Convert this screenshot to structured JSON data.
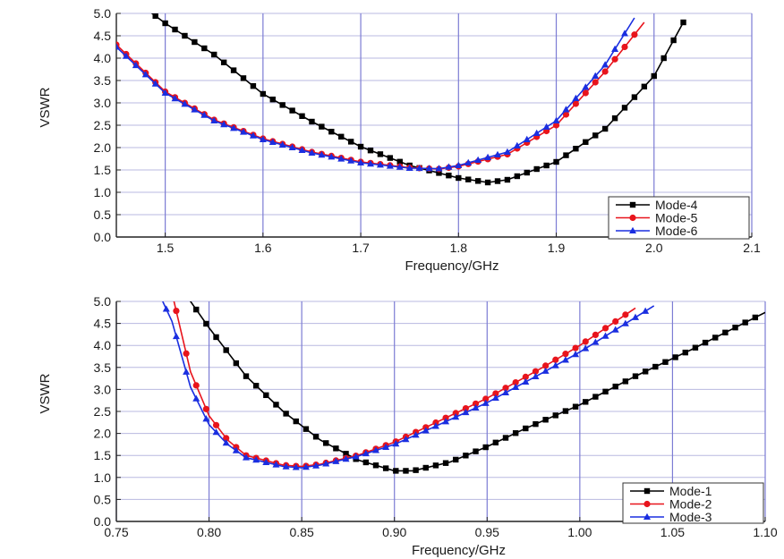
{
  "chart_data": [
    {
      "type": "line",
      "title": "",
      "xlabel": "Frequency/GHz",
      "ylabel": "VSWR",
      "xlim": [
        1.45,
        2.1
      ],
      "ylim": [
        0.0,
        5.0
      ],
      "xticks": [
        "1.5",
        "1.6",
        "1.7",
        "1.8",
        "1.9",
        "2.0",
        "2.1"
      ],
      "yticks": [
        "0.0",
        "0.5",
        "1.0",
        "1.5",
        "2.0",
        "2.5",
        "3.0",
        "3.5",
        "4.0",
        "4.5",
        "5.0"
      ],
      "grid": true,
      "legend_position": "bottom-right",
      "series": [
        {
          "name": "Mode-4",
          "color": "#000000",
          "marker": "square",
          "points": [
            [
              1.45,
              5.6
            ],
            [
              1.5,
              4.78
            ],
            [
              1.55,
              4.08
            ],
            [
              1.6,
              3.2
            ],
            [
              1.65,
              2.58
            ],
            [
              1.7,
              2.02
            ],
            [
              1.75,
              1.6
            ],
            [
              1.8,
              1.32
            ],
            [
              1.83,
              1.22
            ],
            [
              1.85,
              1.28
            ],
            [
              1.9,
              1.68
            ],
            [
              1.95,
              2.42
            ],
            [
              2.0,
              3.6
            ],
            [
              2.03,
              4.8
            ]
          ]
        },
        {
          "name": "Mode-5",
          "color": "#e8141c",
          "marker": "circle",
          "points": [
            [
              1.45,
              4.3
            ],
            [
              1.5,
              3.25
            ],
            [
              1.55,
              2.62
            ],
            [
              1.6,
              2.2
            ],
            [
              1.65,
              1.9
            ],
            [
              1.7,
              1.68
            ],
            [
              1.75,
              1.55
            ],
            [
              1.78,
              1.52
            ],
            [
              1.8,
              1.58
            ],
            [
              1.85,
              1.85
            ],
            [
              1.9,
              2.5
            ],
            [
              1.95,
              3.7
            ],
            [
              1.99,
              4.8
            ]
          ]
        },
        {
          "name": "Mode-6",
          "color": "#1a2ee0",
          "marker": "triangle",
          "points": [
            [
              1.45,
              4.25
            ],
            [
              1.5,
              3.22
            ],
            [
              1.55,
              2.6
            ],
            [
              1.6,
              2.18
            ],
            [
              1.65,
              1.88
            ],
            [
              1.7,
              1.66
            ],
            [
              1.75,
              1.54
            ],
            [
              1.78,
              1.53
            ],
            [
              1.8,
              1.6
            ],
            [
              1.85,
              1.9
            ],
            [
              1.9,
              2.6
            ],
            [
              1.95,
              3.85
            ],
            [
              1.98,
              4.9
            ]
          ]
        }
      ]
    },
    {
      "type": "line",
      "title": "",
      "xlabel": "Frequency/GHz",
      "ylabel": "VSWR",
      "xlim": [
        0.75,
        1.1
      ],
      "ylim": [
        0.0,
        5.0
      ],
      "xticks": [
        "0.75",
        "0.80",
        "0.85",
        "0.90",
        "0.95",
        "1.00",
        "1.05",
        "1.10"
      ],
      "yticks": [
        "0.0",
        "0.5",
        "1.0",
        "1.5",
        "2.0",
        "2.5",
        "3.0",
        "3.5",
        "4.0",
        "4.5",
        "5.0"
      ],
      "grid": true,
      "legend_position": "bottom-right",
      "series": [
        {
          "name": "Mode-1",
          "color": "#000000",
          "marker": "square",
          "points": [
            [
              0.785,
              5.3
            ],
            [
              0.8,
              4.4
            ],
            [
              0.82,
              3.3
            ],
            [
              0.84,
              2.5
            ],
            [
              0.86,
              1.85
            ],
            [
              0.88,
              1.4
            ],
            [
              0.9,
              1.15
            ],
            [
              0.91,
              1.15
            ],
            [
              0.93,
              1.35
            ],
            [
              0.95,
              1.7
            ],
            [
              0.97,
              2.1
            ],
            [
              1.0,
              2.65
            ],
            [
              1.03,
              3.3
            ],
            [
              1.06,
              3.9
            ],
            [
              1.1,
              4.75
            ]
          ]
        },
        {
          "name": "Mode-2",
          "color": "#e8141c",
          "marker": "circle",
          "points": [
            [
              0.78,
              5.2
            ],
            [
              0.79,
              3.4
            ],
            [
              0.8,
              2.4
            ],
            [
              0.81,
              1.85
            ],
            [
              0.82,
              1.5
            ],
            [
              0.84,
              1.28
            ],
            [
              0.85,
              1.25
            ],
            [
              0.86,
              1.3
            ],
            [
              0.88,
              1.5
            ],
            [
              0.9,
              1.8
            ],
            [
              0.92,
              2.2
            ],
            [
              0.95,
              2.8
            ],
            [
              0.98,
              3.5
            ],
            [
              1.0,
              4.0
            ],
            [
              1.03,
              4.85
            ]
          ]
        },
        {
          "name": "Mode-3",
          "color": "#1a2ee0",
          "marker": "triangle",
          "points": [
            [
              0.775,
              5.0
            ],
            [
              0.78,
              4.55
            ],
            [
              0.79,
              3.05
            ],
            [
              0.8,
              2.2
            ],
            [
              0.81,
              1.75
            ],
            [
              0.82,
              1.45
            ],
            [
              0.84,
              1.25
            ],
            [
              0.85,
              1.22
            ],
            [
              0.86,
              1.28
            ],
            [
              0.88,
              1.48
            ],
            [
              0.9,
              1.75
            ],
            [
              0.92,
              2.12
            ],
            [
              0.95,
              2.7
            ],
            [
              0.98,
              3.38
            ],
            [
              1.0,
              3.85
            ],
            [
              1.04,
              4.9
            ]
          ]
        }
      ]
    }
  ]
}
